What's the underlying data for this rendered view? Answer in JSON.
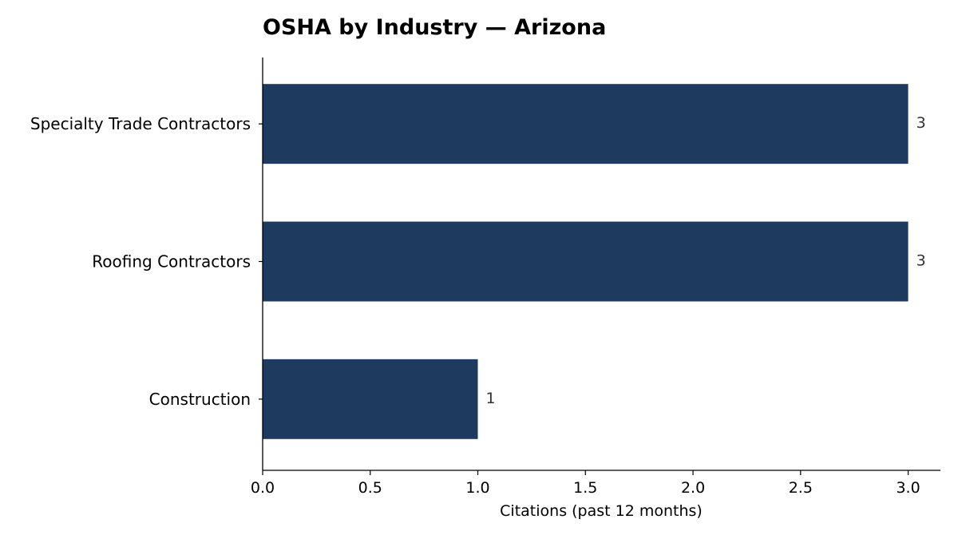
{
  "chart_data": {
    "type": "bar",
    "orientation": "horizontal",
    "title": "OSHA by Industry — Arizona",
    "xlabel": "Citations (past 12 months)",
    "ylabel": "",
    "categories": [
      "Specialty Trade Contractors",
      "Roofing Contractors",
      "Construction"
    ],
    "values": [
      3,
      3,
      1
    ],
    "data_labels": [
      "3",
      "3",
      "1"
    ],
    "xlim": [
      0,
      3.15
    ],
    "xticks": [
      0.0,
      0.5,
      1.0,
      1.5,
      2.0,
      2.5,
      3.0
    ],
    "xtick_labels": [
      "0.0",
      "0.5",
      "1.0",
      "1.5",
      "2.0",
      "2.5",
      "3.0"
    ],
    "grid": false,
    "bar_color": "#1f3a5f"
  }
}
